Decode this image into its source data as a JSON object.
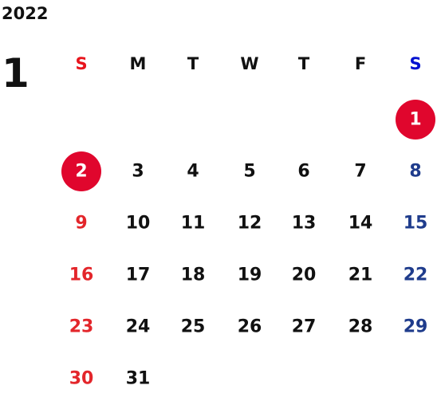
{
  "year": "2022",
  "month": "1",
  "weekdays": [
    "S",
    "M",
    "T",
    "W",
    "T",
    "F",
    "S"
  ],
  "weekday_colors": [
    "#e8141c",
    "#111111",
    "#111111",
    "#111111",
    "#111111",
    "#111111",
    "#0010d0"
  ],
  "day_colors": [
    "#e3262b",
    "#111111",
    "#111111",
    "#111111",
    "#111111",
    "#111111",
    "#1f3c8c"
  ],
  "circle_color": "#e0062d",
  "weeks": [
    [
      null,
      null,
      null,
      null,
      null,
      null,
      {
        "text": "1",
        "circled": true
      }
    ],
    [
      {
        "text": "2",
        "circled": true
      },
      {
        "text": "3"
      },
      {
        "text": "4"
      },
      {
        "text": "5"
      },
      {
        "text": "6"
      },
      {
        "text": "7"
      },
      {
        "text": "8"
      }
    ],
    [
      {
        "text": "9"
      },
      {
        "text": "10"
      },
      {
        "text": "11"
      },
      {
        "text": "12"
      },
      {
        "text": "13"
      },
      {
        "text": "14"
      },
      {
        "text": "15"
      }
    ],
    [
      {
        "text": "16"
      },
      {
        "text": "17"
      },
      {
        "text": "18"
      },
      {
        "text": "19"
      },
      {
        "text": "20"
      },
      {
        "text": "21"
      },
      {
        "text": "22"
      }
    ],
    [
      {
        "text": "23"
      },
      {
        "text": "24"
      },
      {
        "text": "25"
      },
      {
        "text": "26"
      },
      {
        "text": "27"
      },
      {
        "text": "28"
      },
      {
        "text": "29"
      }
    ],
    [
      {
        "text": "30"
      },
      {
        "text": "31"
      }
    ]
  ]
}
